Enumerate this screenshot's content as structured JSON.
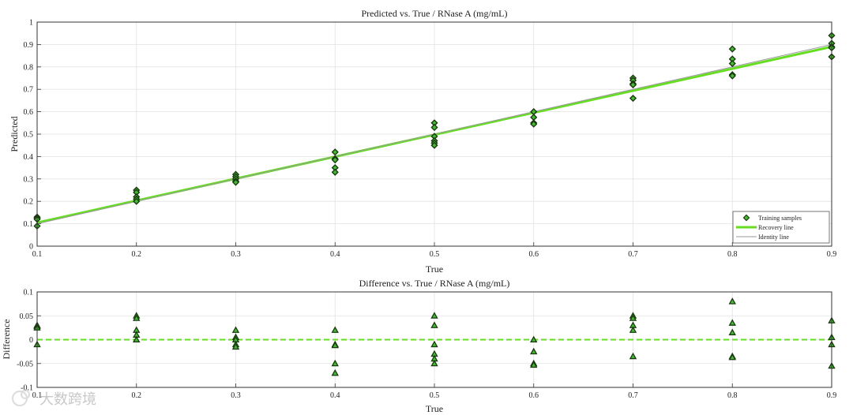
{
  "watermark": {
    "text": "大数跨境"
  },
  "colors": {
    "line": "#66dd22",
    "marker_fill": "#44bb33",
    "marker_edge": "#1a3a10",
    "identity": "#9a9a9a",
    "axis": "#333333"
  },
  "chart_data": [
    {
      "type": "scatter",
      "title": "Predicted vs. True / RNase A (mg/mL)",
      "xlabel": "True",
      "ylabel": "Predicted",
      "xlim": [
        0.1,
        0.9
      ],
      "ylim": [
        0,
        1
      ],
      "xticks": [
        "0.1",
        "0.2",
        "0.3",
        "0.4",
        "0.5",
        "0.6",
        "0.7",
        "0.8",
        "0.9"
      ],
      "yticks": [
        "0",
        "0.1",
        "0.2",
        "0.3",
        "0.4",
        "0.5",
        "0.6",
        "0.7",
        "0.8",
        "0.9",
        "1"
      ],
      "grid": true,
      "legend": {
        "placement": "bottom-right",
        "entries": [
          "Training samples",
          "Recovery line",
          "Identity line"
        ]
      },
      "series": [
        {
          "name": "Training samples",
          "marker": "diamond",
          "points": [
            [
              0.1,
              0.13
            ],
            [
              0.1,
              0.125
            ],
            [
              0.1,
              0.12
            ],
            [
              0.1,
              0.09
            ],
            [
              0.2,
              0.25
            ],
            [
              0.2,
              0.24
            ],
            [
              0.2,
              0.22
            ],
            [
              0.2,
              0.21
            ],
            [
              0.2,
              0.2
            ],
            [
              0.3,
              0.32
            ],
            [
              0.3,
              0.31
            ],
            [
              0.3,
              0.3
            ],
            [
              0.3,
              0.29
            ],
            [
              0.3,
              0.285
            ],
            [
              0.4,
              0.42
            ],
            [
              0.4,
              0.39
            ],
            [
              0.4,
              0.385
            ],
            [
              0.4,
              0.35
            ],
            [
              0.4,
              0.33
            ],
            [
              0.5,
              0.55
            ],
            [
              0.5,
              0.53
            ],
            [
              0.5,
              0.49
            ],
            [
              0.5,
              0.47
            ],
            [
              0.5,
              0.46
            ],
            [
              0.5,
              0.45
            ],
            [
              0.6,
              0.6
            ],
            [
              0.6,
              0.575
            ],
            [
              0.6,
              0.55
            ],
            [
              0.6,
              0.545
            ],
            [
              0.7,
              0.75
            ],
            [
              0.7,
              0.74
            ],
            [
              0.7,
              0.725
            ],
            [
              0.7,
              0.72
            ],
            [
              0.7,
              0.66
            ],
            [
              0.8,
              0.88
            ],
            [
              0.8,
              0.835
            ],
            [
              0.8,
              0.815
            ],
            [
              0.8,
              0.765
            ],
            [
              0.8,
              0.76
            ],
            [
              0.9,
              0.94
            ],
            [
              0.9,
              0.905
            ],
            [
              0.9,
              0.89
            ],
            [
              0.9,
              0.885
            ],
            [
              0.9,
              0.845
            ]
          ]
        },
        {
          "name": "Recovery line",
          "type": "line",
          "points": [
            [
              0.1,
              0.105
            ],
            [
              0.9,
              0.89
            ]
          ]
        },
        {
          "name": "Identity line",
          "type": "line",
          "points": [
            [
              0.1,
              0.1
            ],
            [
              0.9,
              0.9
            ]
          ]
        }
      ]
    },
    {
      "type": "scatter",
      "title": "Difference vs. True / RNase A (mg/mL)",
      "xlabel": "True",
      "ylabel": "Difference",
      "xlim": [
        0.1,
        0.9
      ],
      "ylim": [
        -0.1,
        0.1
      ],
      "xticks": [
        "0.1",
        "0.2",
        "0.3",
        "0.4",
        "0.5",
        "0.6",
        "0.7",
        "0.8",
        "0.9"
      ],
      "yticks": [
        "-0.1",
        "-0.05",
        "0",
        "0.05",
        "0.1"
      ],
      "grid": true,
      "zero_line": {
        "y": 0,
        "style": "dashed"
      },
      "series": [
        {
          "name": "",
          "marker": "triangle",
          "points": [
            [
              0.1,
              0.03
            ],
            [
              0.1,
              0.028
            ],
            [
              0.1,
              0.025
            ],
            [
              0.1,
              -0.01
            ],
            [
              0.2,
              0.05
            ],
            [
              0.2,
              0.045
            ],
            [
              0.2,
              0.02
            ],
            [
              0.2,
              0.01
            ],
            [
              0.2,
              0.0
            ],
            [
              0.3,
              0.02
            ],
            [
              0.3,
              0.005
            ],
            [
              0.3,
              0.0
            ],
            [
              0.3,
              -0.01
            ],
            [
              0.3,
              -0.015
            ],
            [
              0.4,
              0.02
            ],
            [
              0.4,
              -0.01
            ],
            [
              0.4,
              -0.012
            ],
            [
              0.4,
              -0.05
            ],
            [
              0.4,
              -0.07
            ],
            [
              0.5,
              0.05
            ],
            [
              0.5,
              0.03
            ],
            [
              0.5,
              -0.01
            ],
            [
              0.5,
              -0.03
            ],
            [
              0.5,
              -0.04
            ],
            [
              0.5,
              -0.05
            ],
            [
              0.6,
              0.0
            ],
            [
              0.6,
              -0.025
            ],
            [
              0.6,
              -0.05
            ],
            [
              0.6,
              -0.053
            ],
            [
              0.7,
              0.05
            ],
            [
              0.7,
              0.045
            ],
            [
              0.7,
              0.03
            ],
            [
              0.7,
              0.02
            ],
            [
              0.7,
              -0.035
            ],
            [
              0.8,
              0.08
            ],
            [
              0.8,
              0.035
            ],
            [
              0.8,
              0.015
            ],
            [
              0.8,
              -0.035
            ],
            [
              0.8,
              -0.037
            ],
            [
              0.9,
              0.04
            ],
            [
              0.9,
              0.005
            ],
            [
              0.9,
              -0.01
            ],
            [
              0.9,
              -0.055
            ]
          ]
        }
      ]
    }
  ]
}
